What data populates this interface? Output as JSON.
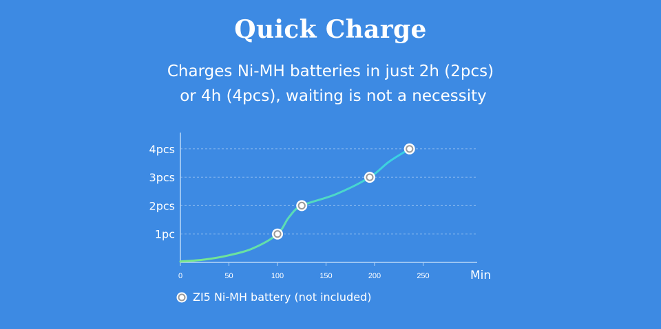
{
  "title": "Quick Charge",
  "subtitle_line1": "Charges Ni-MH batteries in just 2h (2pcs)",
  "subtitle_line2": "or 4h (4pcs), waiting is not a necessity",
  "legend_label": "ZI5 Ni-MH battery (not included)",
  "colors": {
    "background": "#3d8ae3",
    "curve_start": "#7ce887",
    "curve_end": "#36d0e8",
    "marker_outer": "#ffffff",
    "marker_ring": "#9a9a9a",
    "grid": "#8fbcf0",
    "axis": "#b9d7f7"
  },
  "chart_data": {
    "type": "line",
    "xlabel": "Min",
    "ylabel": "",
    "xlim": [
      0,
      300
    ],
    "ylim": [
      0,
      4
    ],
    "x_ticks": [
      0,
      50,
      100,
      150,
      200,
      250
    ],
    "y_tick_values": [
      1,
      2,
      3,
      4
    ],
    "y_tick_labels": [
      "1pc",
      "2pcs",
      "3pcs",
      "4pcs"
    ],
    "grid": "horizontal-dashed",
    "legend_position": "bottom-left",
    "series": [
      {
        "name": "ZI5 Ni-MH battery (not included)",
        "markers": [
          {
            "x": 100,
            "y": 1
          },
          {
            "x": 125,
            "y": 2
          },
          {
            "x": 195,
            "y": 3
          },
          {
            "x": 236,
            "y": 4
          }
        ],
        "curve": [
          {
            "x": 0,
            "y": 0.03
          },
          {
            "x": 25,
            "y": 0.1
          },
          {
            "x": 50,
            "y": 0.25
          },
          {
            "x": 75,
            "y": 0.5
          },
          {
            "x": 100,
            "y": 1
          },
          {
            "x": 112,
            "y": 1.6
          },
          {
            "x": 125,
            "y": 2
          },
          {
            "x": 160,
            "y": 2.4
          },
          {
            "x": 195,
            "y": 3
          },
          {
            "x": 215,
            "y": 3.55
          },
          {
            "x": 236,
            "y": 4
          }
        ]
      }
    ]
  }
}
